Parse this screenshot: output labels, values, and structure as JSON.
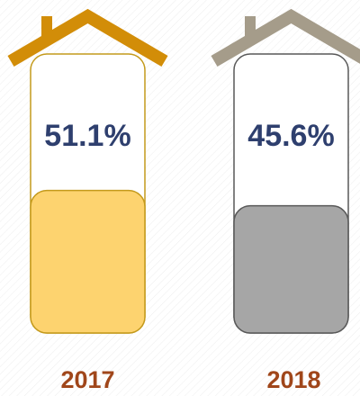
{
  "chart_data": {
    "type": "bar",
    "categories": [
      "2017",
      "2018"
    ],
    "values": [
      51.1,
      45.6
    ],
    "value_labels": [
      "51.1%",
      "45.6%"
    ],
    "colors": [
      "#fdd36f",
      "#a6a6a6"
    ],
    "border_colors": [
      "#c49a1c",
      "#595959"
    ],
    "roof_colors": [
      "#d28d08",
      "#a59c8a"
    ],
    "ylim": [
      0,
      100
    ]
  }
}
